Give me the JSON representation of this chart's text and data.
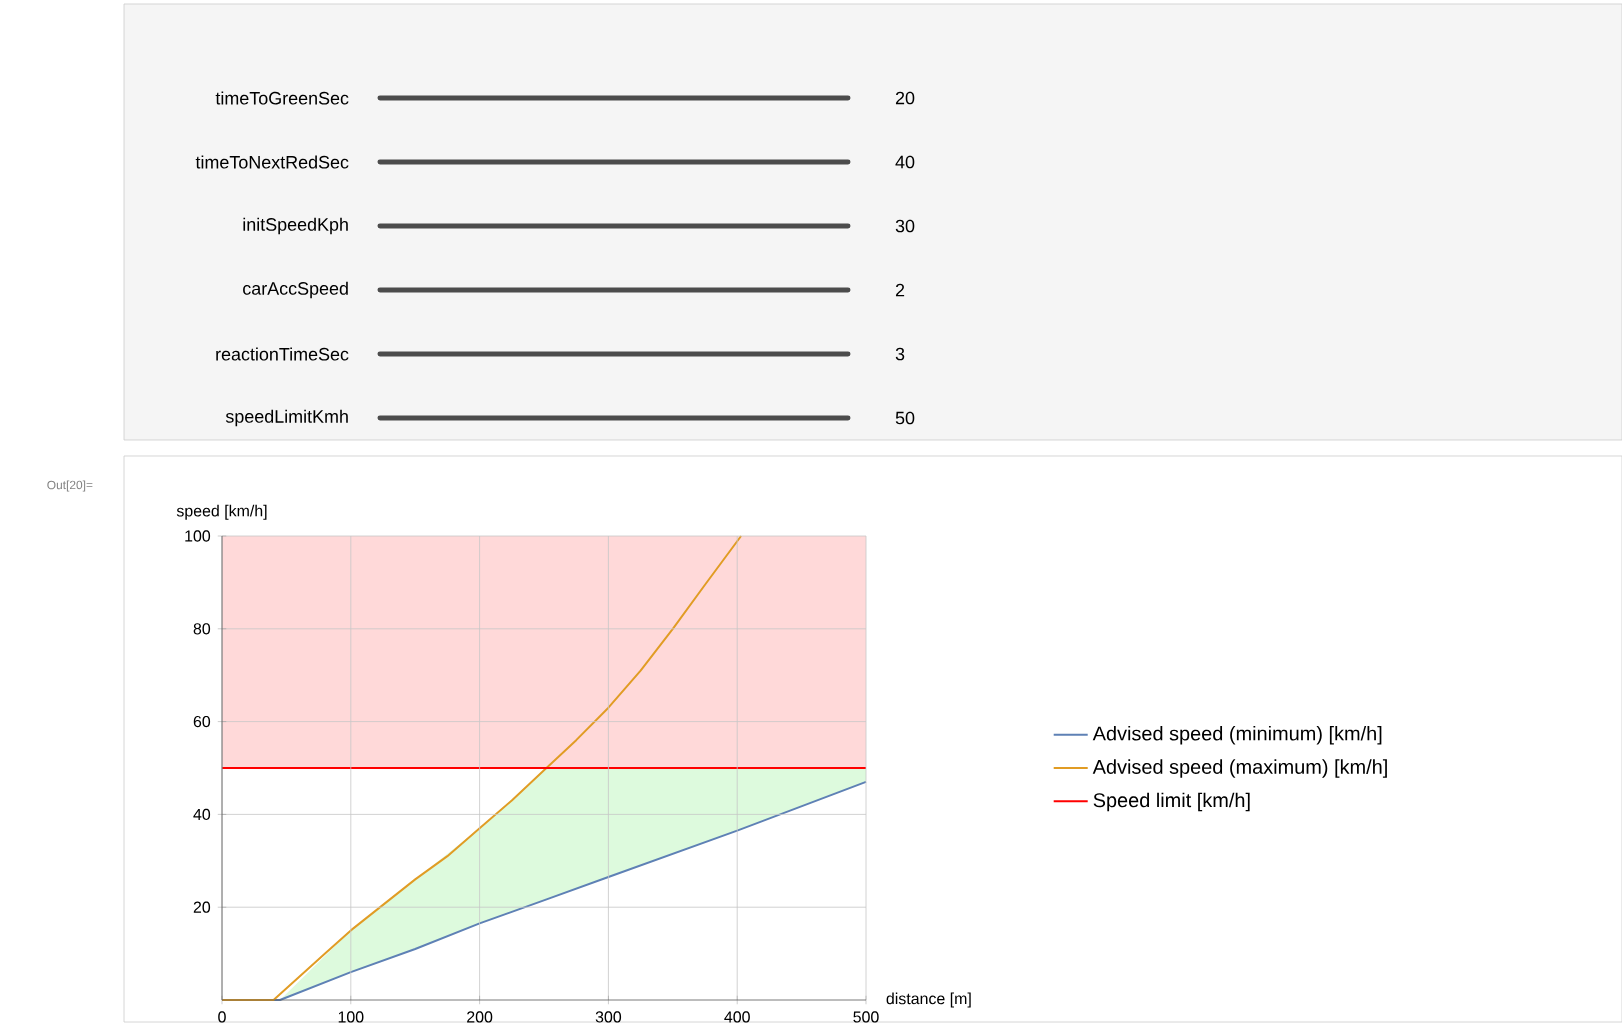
{
  "chart_data": {
    "type": "line",
    "xlabel": "distance [m]",
    "ylabel": "speed [km/h]",
    "xlim": [
      0,
      500
    ],
    "ylim": [
      0,
      100
    ],
    "xticks": [
      0,
      100,
      200,
      300,
      400,
      500
    ],
    "yticks": [
      20,
      40,
      60,
      80,
      100
    ],
    "grid": true,
    "legend": "right",
    "marker": "none",
    "line_style": "solid",
    "series": [
      {
        "name": "Advised speed (minimum) [km/h]",
        "color": "#5e81b5",
        "x": [
          0,
          45,
          100,
          150,
          200,
          252,
          300,
          400,
          500
        ],
        "values": [
          0,
          0,
          6,
          11,
          16.5,
          21.7,
          26.5,
          36.5,
          47
        ],
        "lower": [
          0,
          0,
          6,
          11,
          16.5,
          21.7,
          26.5,
          36.5,
          47
        ],
        "upper": [
          0,
          0,
          15,
          26,
          37,
          50,
          50,
          50,
          50
        ]
      },
      {
        "name": "Advised speed (maximum) [km/h]",
        "color": "#e19c24",
        "x": [
          0,
          40,
          60,
          80,
          100,
          125,
          150,
          175,
          200,
          225,
          250,
          275,
          300,
          325,
          350,
          375,
          403
        ],
        "values": [
          0,
          0,
          5,
          10,
          15,
          20.5,
          26,
          31,
          37,
          43,
          49.5,
          56,
          63,
          71,
          80,
          89.5,
          100
        ]
      },
      {
        "name": "Speed limit [km/h]",
        "color": "#ff0000",
        "x": [
          0,
          500
        ],
        "values": [
          50,
          50
        ]
      }
    ],
    "bands": [
      {
        "axis": "y",
        "from": 50,
        "to": 100,
        "color": "#ffd9d9"
      }
    ],
    "annotations": [
      "timeToGreenSec",
      "20",
      "timeToNextRedSec",
      "40",
      "initSpeedKph",
      "30",
      "carAccSpeed",
      "2",
      "reactionTimeSec",
      "3",
      "speedLimitKmh",
      "50",
      "Out[20]="
    ]
  }
}
